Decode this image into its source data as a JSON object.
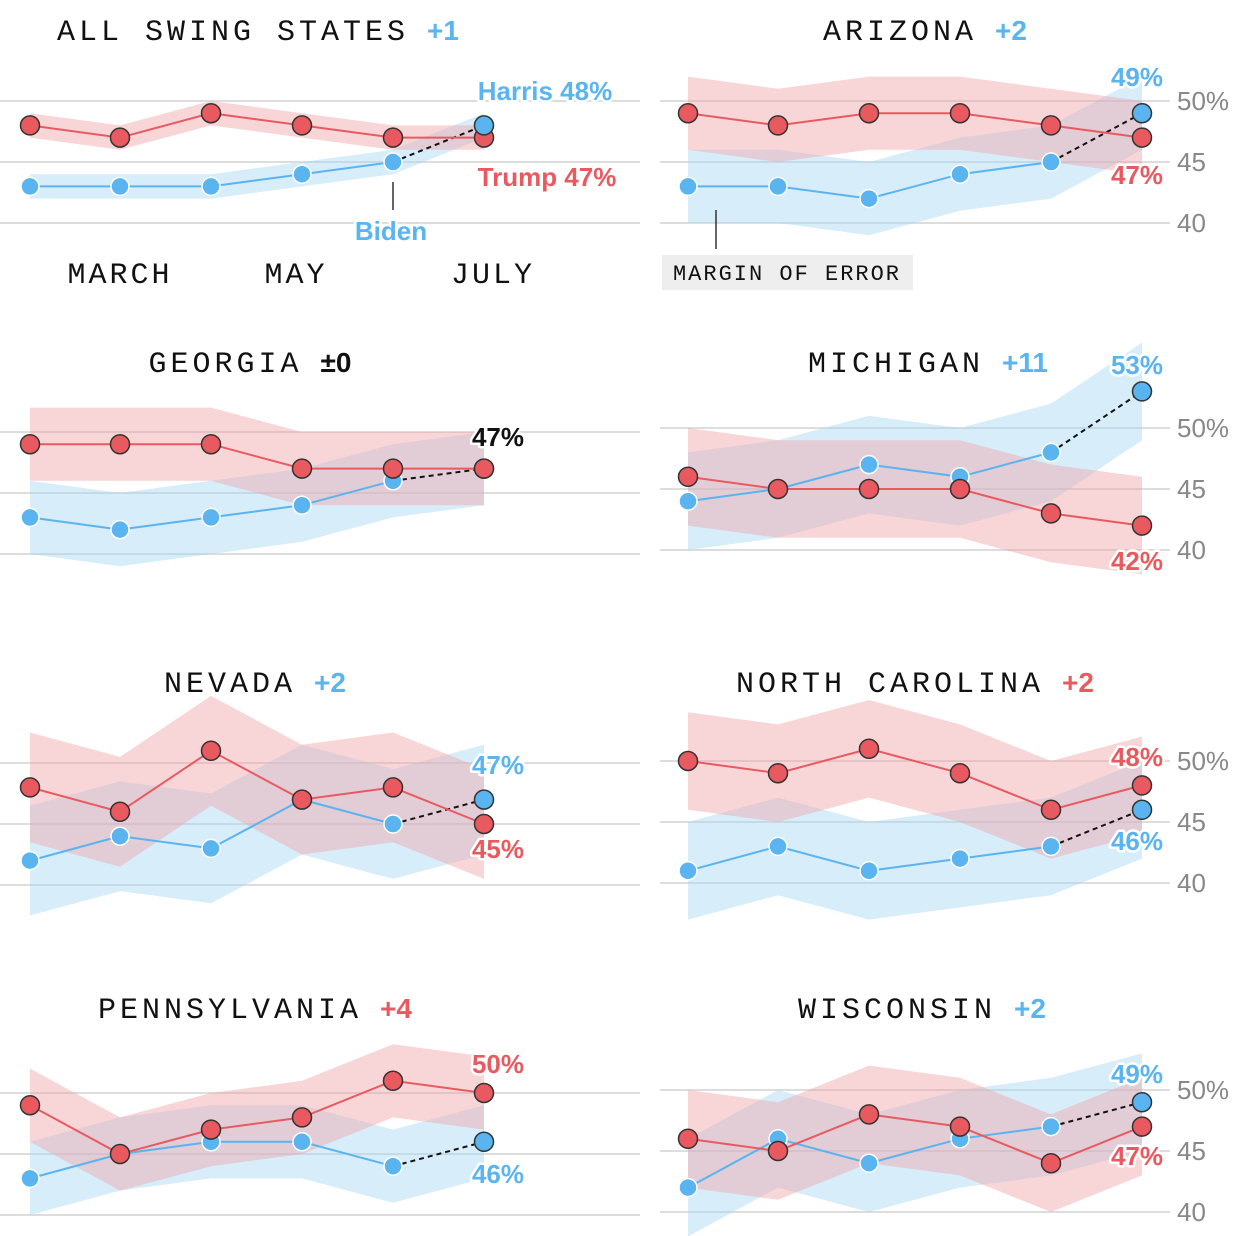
{
  "colors": {
    "trump": "#e85a60",
    "harris": "#5ab4ef",
    "neutral": "#111111",
    "trump_band": "#f0a3a8",
    "harris_band": "#a6d6f4"
  },
  "annotations": {
    "biden_label": "Biden",
    "months": [
      "MARCH",
      "MAY",
      "JULY"
    ],
    "moe_label": "MARGIN OF ERROR"
  },
  "chart_data": [
    {
      "type": "line",
      "title": "ALL SWING STATES",
      "delta": "+1",
      "leader": "harris",
      "trump": [
        48,
        47,
        49,
        48,
        47,
        47
      ],
      "biden": [
        43,
        43,
        43,
        44,
        45
      ],
      "harris": 48,
      "moe": 1,
      "labels": {
        "harris": "Harris 48%",
        "trump": "Trump 47%"
      },
      "yticks": []
    },
    {
      "type": "line",
      "title": "ARIZONA",
      "delta": "+2",
      "leader": "harris",
      "trump": [
        49,
        48,
        49,
        49,
        48,
        47
      ],
      "biden": [
        43,
        43,
        42,
        44,
        45
      ],
      "harris": 49,
      "moe": 3,
      "labels": {
        "harris": "49%",
        "trump": "47%"
      },
      "yticks": [
        "50%",
        "45",
        "40"
      ]
    },
    {
      "type": "line",
      "title": "GEORGIA",
      "delta": "±0",
      "leader": "tie",
      "trump": [
        49,
        49,
        49,
        47,
        47,
        47
      ],
      "biden": [
        43,
        42,
        43,
        44,
        46
      ],
      "harris": 47,
      "moe": 3,
      "labels": {
        "tie": "47%"
      },
      "yticks": []
    },
    {
      "type": "line",
      "title": "MICHIGAN",
      "delta": "+11",
      "leader": "harris",
      "trump": [
        46,
        45,
        45,
        45,
        43,
        42
      ],
      "biden": [
        44,
        45,
        47,
        46,
        48
      ],
      "harris": 53,
      "moe": 4,
      "labels": {
        "harris": "53%",
        "trump": "42%"
      },
      "yticks": [
        "50%",
        "45",
        "40"
      ]
    },
    {
      "type": "line",
      "title": "NEVADA",
      "delta": "+2",
      "leader": "harris",
      "trump": [
        48,
        46,
        51,
        47,
        48,
        45
      ],
      "biden": [
        42,
        44,
        43,
        47,
        45
      ],
      "harris": 47,
      "moe": 4.5,
      "labels": {
        "harris": "47%",
        "trump": "45%"
      },
      "yticks": []
    },
    {
      "type": "line",
      "title": "NORTH CAROLINA",
      "delta": "+2",
      "leader": "trump",
      "trump": [
        50,
        49,
        51,
        49,
        46,
        48
      ],
      "biden": [
        41,
        43,
        41,
        42,
        43
      ],
      "harris": 46,
      "moe": 4,
      "labels": {
        "trump": "48%",
        "harris": "46%"
      },
      "yticks": [
        "50%",
        "45",
        "40"
      ]
    },
    {
      "type": "line",
      "title": "PENNSYLVANIA",
      "delta": "+4",
      "leader": "trump",
      "trump": [
        49,
        45,
        47,
        48,
        51,
        50
      ],
      "biden": [
        43,
        45,
        46,
        46,
        44
      ],
      "harris": 46,
      "moe": 3,
      "labels": {
        "trump": "50%",
        "harris": "46%"
      },
      "yticks": []
    },
    {
      "type": "line",
      "title": "WISCONSIN",
      "delta": "+2",
      "leader": "harris",
      "trump": [
        46,
        45,
        48,
        47,
        44,
        47
      ],
      "biden": [
        42,
        46,
        44,
        46,
        47
      ],
      "harris": 49,
      "moe": 4,
      "labels": {
        "harris": "49%",
        "trump": "47%"
      },
      "yticks": [
        "50%",
        "45",
        "40"
      ]
    }
  ]
}
